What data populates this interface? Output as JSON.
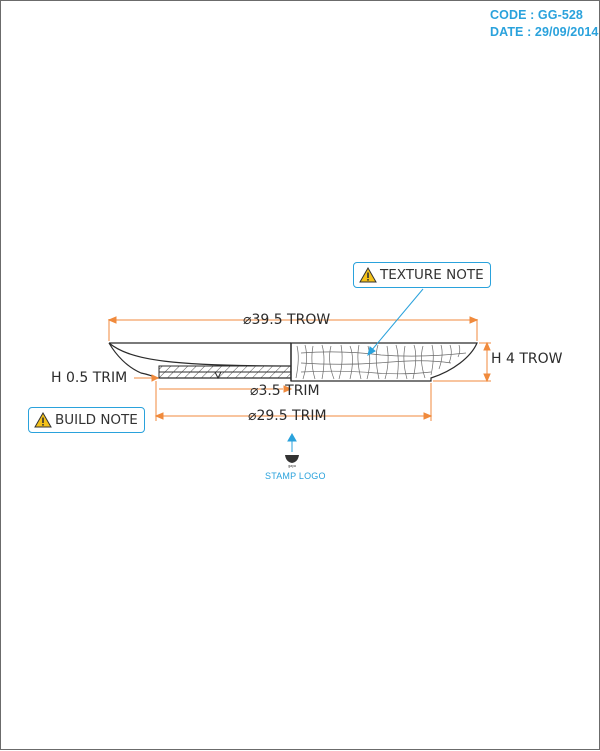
{
  "header": {
    "code": "CODE : GG-528",
    "date": "DATE : 29/09/2014"
  },
  "dimensions": {
    "outer_diameter": "39.5 TROW",
    "height": "H 4 TROW",
    "trim_height": "H 0.5 TRIM",
    "inner_diameter": "3.5 TRIM",
    "base_diameter": "29.5 TRIM",
    "diameter_symbol": "⌀"
  },
  "notes": {
    "texture": "TEXTURE NOTE",
    "build": "BUILD NOTE"
  },
  "stamp": {
    "label": "STAMP LOGO",
    "logo_text": "gaya"
  },
  "colors": {
    "accent": "#2aa2dc",
    "dimension_line": "#f08a3c",
    "outline": "#2b2b2b",
    "warning_fill": "#f4c21a"
  },
  "icons": {
    "note": "warning-triangle-icon",
    "stamp": "stamp-logo-icon"
  }
}
